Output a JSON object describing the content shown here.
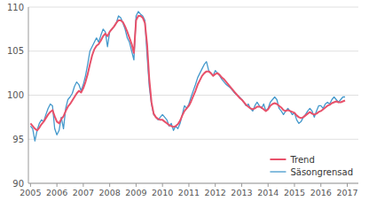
{
  "chart_data": {
    "type": "line",
    "x": [
      2005,
      2005.0833,
      2005.1667,
      2005.25,
      2005.3333,
      2005.4167,
      2005.5,
      2005.5833,
      2005.6667,
      2005.75,
      2005.8333,
      2005.9167,
      2006,
      2006.0833,
      2006.1667,
      2006.25,
      2006.3333,
      2006.4167,
      2006.5,
      2006.5833,
      2006.6667,
      2006.75,
      2006.8333,
      2006.9167,
      2007,
      2007.0833,
      2007.1667,
      2007.25,
      2007.3333,
      2007.4167,
      2007.5,
      2007.5833,
      2007.6667,
      2007.75,
      2007.8333,
      2007.9167,
      2008,
      2008.0833,
      2008.1667,
      2008.25,
      2008.3333,
      2008.4167,
      2008.5,
      2008.5833,
      2008.6667,
      2008.75,
      2008.8333,
      2008.9167,
      2009,
      2009.0833,
      2009.1667,
      2009.25,
      2009.3333,
      2009.4167,
      2009.5,
      2009.5833,
      2009.6667,
      2009.75,
      2009.8333,
      2009.9167,
      2010,
      2010.0833,
      2010.1667,
      2010.25,
      2010.3333,
      2010.4167,
      2010.5,
      2010.5833,
      2010.6667,
      2010.75,
      2010.8333,
      2010.9167,
      2011,
      2011.0833,
      2011.1667,
      2011.25,
      2011.3333,
      2011.4167,
      2011.5,
      2011.5833,
      2011.6667,
      2011.75,
      2011.8333,
      2011.9167,
      2012,
      2012.0833,
      2012.1667,
      2012.25,
      2012.3333,
      2012.4167,
      2012.5,
      2012.5833,
      2012.6667,
      2012.75,
      2012.8333,
      2012.9167,
      2013,
      2013.0833,
      2013.1667,
      2013.25,
      2013.3333,
      2013.4167,
      2013.5,
      2013.5833,
      2013.6667,
      2013.75,
      2013.8333,
      2013.9167,
      2014,
      2014.0833,
      2014.1667,
      2014.25,
      2014.3333,
      2014.4167,
      2014.5,
      2014.5833,
      2014.6667,
      2014.75,
      2014.8333,
      2014.9167,
      2015,
      2015.0833,
      2015.1667,
      2015.25,
      2015.3333,
      2015.4167,
      2015.5,
      2015.5833,
      2015.6667,
      2015.75,
      2015.8333,
      2015.9167,
      2016,
      2016.0833,
      2016.1667,
      2016.25,
      2016.3333,
      2016.4167,
      2016.5,
      2016.5833,
      2016.6667,
      2016.75,
      2016.8333,
      2016.9167
    ],
    "series": [
      {
        "name": "Säsongrensad",
        "color": "#4499cc",
        "values": [
          96.5,
          96.2,
          94.8,
          96.0,
          96.8,
          97.2,
          97.0,
          97.8,
          98.5,
          99.0,
          98.8,
          96.2,
          95.5,
          96.0,
          97.5,
          96.2,
          98.5,
          99.5,
          99.8,
          100.2,
          101.0,
          101.5,
          101.2,
          100.5,
          101.2,
          102.2,
          103.5,
          105.0,
          105.5,
          106.0,
          106.5,
          106.0,
          106.8,
          107.5,
          107.2,
          105.5,
          107.2,
          107.5,
          107.8,
          108.2,
          109.0,
          108.8,
          108.2,
          107.5,
          106.5,
          106.0,
          105.0,
          104.0,
          109.0,
          109.5,
          109.2,
          109.0,
          108.5,
          104.5,
          101.0,
          99.0,
          97.8,
          97.5,
          97.2,
          97.5,
          97.8,
          97.5,
          97.2,
          96.5,
          96.8,
          96.0,
          96.5,
          96.2,
          96.8,
          97.8,
          98.8,
          98.5,
          99.0,
          99.8,
          100.5,
          101.2,
          102.0,
          102.5,
          103.0,
          103.5,
          103.8,
          102.8,
          102.5,
          102.2,
          102.8,
          102.5,
          102.2,
          101.8,
          101.5,
          101.2,
          101.0,
          100.8,
          100.5,
          100.2,
          100.0,
          99.8,
          99.5,
          99.2,
          98.8,
          99.0,
          98.5,
          98.2,
          98.8,
          99.2,
          98.8,
          98.5,
          99.0,
          98.2,
          98.5,
          99.2,
          99.5,
          99.8,
          99.5,
          98.5,
          98.2,
          97.8,
          98.2,
          98.5,
          98.2,
          97.8,
          98.0,
          97.2,
          96.8,
          97.0,
          97.5,
          97.8,
          98.2,
          98.5,
          98.2,
          97.5,
          98.2,
          98.8,
          98.8,
          98.5,
          99.0,
          99.2,
          99.0,
          99.5,
          99.8,
          99.5,
          99.2,
          99.5,
          99.8,
          99.8
        ]
      },
      {
        "name": "Trend",
        "color": "#e8516a",
        "values": [
          96.8,
          96.5,
          96.2,
          96.0,
          96.3,
          96.7,
          97.0,
          97.4,
          97.8,
          98.1,
          98.3,
          97.6,
          97.0,
          96.8,
          97.3,
          97.6,
          98.2,
          98.7,
          99.0,
          99.4,
          99.8,
          100.2,
          100.5,
          100.3,
          100.8,
          101.5,
          102.4,
          103.5,
          104.5,
          105.2,
          105.6,
          105.8,
          106.2,
          106.7,
          107.0,
          106.7,
          107.2,
          107.5,
          107.8,
          108.2,
          108.5,
          108.5,
          108.3,
          107.8,
          107.2,
          106.5,
          105.8,
          104.8,
          108.5,
          109.0,
          109.0,
          108.8,
          108.2,
          105.8,
          101.8,
          99.2,
          97.9,
          97.5,
          97.3,
          97.2,
          97.2,
          97.0,
          96.8,
          96.6,
          96.5,
          96.4,
          96.5,
          96.7,
          97.1,
          97.7,
          98.2,
          98.5,
          98.8,
          99.3,
          99.9,
          100.5,
          101.2,
          101.7,
          102.2,
          102.5,
          102.7,
          102.7,
          102.5,
          102.2,
          102.4,
          102.5,
          102.3,
          102.0,
          101.8,
          101.5,
          101.2,
          100.9,
          100.6,
          100.3,
          100.0,
          99.7,
          99.5,
          99.2,
          98.9,
          98.7,
          98.5,
          98.4,
          98.5,
          98.7,
          98.7,
          98.6,
          98.4,
          98.2,
          98.4,
          98.8,
          99.0,
          99.1,
          99.0,
          98.8,
          98.6,
          98.3,
          98.2,
          98.3,
          98.2,
          98.1,
          98.0,
          97.7,
          97.5,
          97.4,
          97.5,
          97.7,
          97.9,
          98.1,
          97.9,
          97.8,
          97.9,
          98.1,
          98.2,
          98.4,
          98.6,
          98.8,
          98.9,
          99.1,
          99.2,
          99.3,
          99.2,
          99.2,
          99.3,
          99.4
        ]
      }
    ],
    "xlim": [
      2004.92,
      2017.42
    ],
    "xticks": [
      2005,
      2006,
      2007,
      2008,
      2009,
      2010,
      2011,
      2012,
      2013,
      2014,
      2015,
      2016,
      2017
    ],
    "ylim": [
      90,
      110
    ],
    "yticks": [
      90,
      95,
      100,
      105,
      110
    ],
    "grid": true,
    "legend": "lower right"
  }
}
